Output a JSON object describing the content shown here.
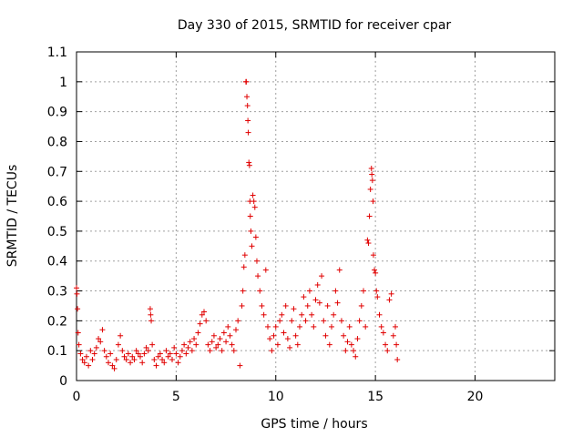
{
  "chart_data": {
    "type": "scatter",
    "title": "Day 330 of 2015, SRMTID for receiver cpar",
    "xlabel": "GPS time / hours",
    "ylabel": "SRMTID / TECUs",
    "xlim": [
      0,
      24
    ],
    "ylim": [
      0,
      1.1
    ],
    "x_ticks": [
      0,
      5,
      10,
      15,
      20
    ],
    "y_ticks": [
      0,
      0.1,
      0.2,
      0.3,
      0.4,
      0.5,
      0.6,
      0.7,
      0.8,
      0.9,
      1,
      1.1
    ],
    "x_tick_labels": [
      "0",
      "5",
      "10",
      "15",
      "20"
    ],
    "y_tick_labels": [
      "0",
      "0.1",
      "0.2",
      "0.3",
      "0.4",
      "0.5",
      "0.6",
      "0.7",
      "0.8",
      "0.9",
      "1",
      "1.1"
    ],
    "grid": true,
    "marker": "+",
    "series": [
      {
        "name": "SRMTID",
        "color": "#e00000",
        "points": [
          [
            0.0,
            0.31
          ],
          [
            0.02,
            0.29
          ],
          [
            0.05,
            0.24
          ],
          [
            0.08,
            0.16
          ],
          [
            0.12,
            0.12
          ],
          [
            0.2,
            0.09
          ],
          [
            0.3,
            0.07
          ],
          [
            0.4,
            0.06
          ],
          [
            0.5,
            0.08
          ],
          [
            0.6,
            0.05
          ],
          [
            0.7,
            0.1
          ],
          [
            0.8,
            0.07
          ],
          [
            0.9,
            0.09
          ],
          [
            1.0,
            0.11
          ],
          [
            1.1,
            0.14
          ],
          [
            1.2,
            0.13
          ],
          [
            1.3,
            0.17
          ],
          [
            1.4,
            0.1
          ],
          [
            1.5,
            0.08
          ],
          [
            1.6,
            0.06
          ],
          [
            1.7,
            0.09
          ],
          [
            1.8,
            0.05
          ],
          [
            1.9,
            0.04
          ],
          [
            2.0,
            0.07
          ],
          [
            2.1,
            0.12
          ],
          [
            2.2,
            0.15
          ],
          [
            2.3,
            0.1
          ],
          [
            2.4,
            0.08
          ],
          [
            2.5,
            0.07
          ],
          [
            2.6,
            0.09
          ],
          [
            2.7,
            0.06
          ],
          [
            2.8,
            0.08
          ],
          [
            2.9,
            0.07
          ],
          [
            3.0,
            0.1
          ],
          [
            3.1,
            0.09
          ],
          [
            3.2,
            0.08
          ],
          [
            3.3,
            0.06
          ],
          [
            3.4,
            0.09
          ],
          [
            3.5,
            0.11
          ],
          [
            3.6,
            0.1
          ],
          [
            3.7,
            0.24
          ],
          [
            3.72,
            0.22
          ],
          [
            3.75,
            0.2
          ],
          [
            3.8,
            0.12
          ],
          [
            3.9,
            0.07
          ],
          [
            4.0,
            0.05
          ],
          [
            4.1,
            0.08
          ],
          [
            4.2,
            0.09
          ],
          [
            4.3,
            0.07
          ],
          [
            4.4,
            0.06
          ],
          [
            4.5,
            0.1
          ],
          [
            4.6,
            0.08
          ],
          [
            4.7,
            0.09
          ],
          [
            4.8,
            0.07
          ],
          [
            4.9,
            0.11
          ],
          [
            5.0,
            0.09
          ],
          [
            5.1,
            0.06
          ],
          [
            5.2,
            0.08
          ],
          [
            5.3,
            0.1
          ],
          [
            5.4,
            0.12
          ],
          [
            5.5,
            0.09
          ],
          [
            5.6,
            0.11
          ],
          [
            5.7,
            0.13
          ],
          [
            5.8,
            0.1
          ],
          [
            5.9,
            0.14
          ],
          [
            6.0,
            0.12
          ],
          [
            6.1,
            0.16
          ],
          [
            6.2,
            0.19
          ],
          [
            6.3,
            0.22
          ],
          [
            6.4,
            0.23
          ],
          [
            6.5,
            0.2
          ],
          [
            6.6,
            0.12
          ],
          [
            6.7,
            0.1
          ],
          [
            6.8,
            0.13
          ],
          [
            6.9,
            0.15
          ],
          [
            7.0,
            0.11
          ],
          [
            7.1,
            0.12
          ],
          [
            7.2,
            0.14
          ],
          [
            7.3,
            0.1
          ],
          [
            7.4,
            0.16
          ],
          [
            7.5,
            0.13
          ],
          [
            7.6,
            0.18
          ],
          [
            7.7,
            0.15
          ],
          [
            7.8,
            0.12
          ],
          [
            7.9,
            0.1
          ],
          [
            8.0,
            0.17
          ],
          [
            8.1,
            0.2
          ],
          [
            8.2,
            0.05
          ],
          [
            8.3,
            0.25
          ],
          [
            8.35,
            0.3
          ],
          [
            8.4,
            0.38
          ],
          [
            8.45,
            0.42
          ],
          [
            8.5,
            1.0
          ],
          [
            8.52,
            1.0
          ],
          [
            8.55,
            0.95
          ],
          [
            8.58,
            0.92
          ],
          [
            8.6,
            0.87
          ],
          [
            8.62,
            0.83
          ],
          [
            8.65,
            0.73
          ],
          [
            8.68,
            0.72
          ],
          [
            8.7,
            0.6
          ],
          [
            8.72,
            0.55
          ],
          [
            8.75,
            0.5
          ],
          [
            8.8,
            0.45
          ],
          [
            8.85,
            0.62
          ],
          [
            8.9,
            0.6
          ],
          [
            8.95,
            0.58
          ],
          [
            9.0,
            0.48
          ],
          [
            9.05,
            0.4
          ],
          [
            9.1,
            0.35
          ],
          [
            9.2,
            0.3
          ],
          [
            9.3,
            0.25
          ],
          [
            9.4,
            0.22
          ],
          [
            9.5,
            0.37
          ],
          [
            9.6,
            0.18
          ],
          [
            9.7,
            0.14
          ],
          [
            9.8,
            0.1
          ],
          [
            9.9,
            0.15
          ],
          [
            10.0,
            0.18
          ],
          [
            10.1,
            0.12
          ],
          [
            10.2,
            0.2
          ],
          [
            10.3,
            0.22
          ],
          [
            10.4,
            0.16
          ],
          [
            10.5,
            0.25
          ],
          [
            10.6,
            0.14
          ],
          [
            10.7,
            0.11
          ],
          [
            10.8,
            0.2
          ],
          [
            10.9,
            0.24
          ],
          [
            11.0,
            0.15
          ],
          [
            11.1,
            0.12
          ],
          [
            11.2,
            0.18
          ],
          [
            11.3,
            0.22
          ],
          [
            11.4,
            0.28
          ],
          [
            11.5,
            0.2
          ],
          [
            11.6,
            0.25
          ],
          [
            11.7,
            0.3
          ],
          [
            11.8,
            0.22
          ],
          [
            11.9,
            0.18
          ],
          [
            12.0,
            0.27
          ],
          [
            12.1,
            0.32
          ],
          [
            12.2,
            0.26
          ],
          [
            12.3,
            0.35
          ],
          [
            12.4,
            0.2
          ],
          [
            12.5,
            0.15
          ],
          [
            12.6,
            0.25
          ],
          [
            12.7,
            0.12
          ],
          [
            12.8,
            0.18
          ],
          [
            12.9,
            0.22
          ],
          [
            13.0,
            0.3
          ],
          [
            13.1,
            0.26
          ],
          [
            13.2,
            0.37
          ],
          [
            13.3,
            0.2
          ],
          [
            13.4,
            0.15
          ],
          [
            13.5,
            0.1
          ],
          [
            13.6,
            0.13
          ],
          [
            13.7,
            0.18
          ],
          [
            13.8,
            0.12
          ],
          [
            13.9,
            0.1
          ],
          [
            14.0,
            0.08
          ],
          [
            14.1,
            0.14
          ],
          [
            14.2,
            0.2
          ],
          [
            14.3,
            0.25
          ],
          [
            14.4,
            0.3
          ],
          [
            14.5,
            0.18
          ],
          [
            14.6,
            0.47
          ],
          [
            14.65,
            0.46
          ],
          [
            14.7,
            0.55
          ],
          [
            14.75,
            0.64
          ],
          [
            14.8,
            0.71
          ],
          [
            14.82,
            0.69
          ],
          [
            14.85,
            0.67
          ],
          [
            14.88,
            0.6
          ],
          [
            14.9,
            0.42
          ],
          [
            14.95,
            0.37
          ],
          [
            15.0,
            0.36
          ],
          [
            15.05,
            0.3
          ],
          [
            15.1,
            0.28
          ],
          [
            15.2,
            0.22
          ],
          [
            15.3,
            0.18
          ],
          [
            15.4,
            0.16
          ],
          [
            15.5,
            0.12
          ],
          [
            15.6,
            0.1
          ],
          [
            15.7,
            0.27
          ],
          [
            15.8,
            0.29
          ],
          [
            15.9,
            0.15
          ],
          [
            16.0,
            0.18
          ],
          [
            16.05,
            0.12
          ],
          [
            16.1,
            0.07
          ]
        ]
      }
    ]
  }
}
